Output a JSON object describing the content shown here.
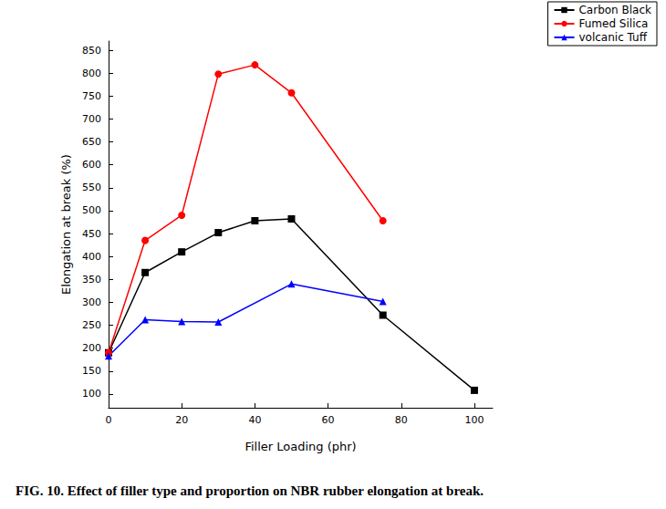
{
  "chart_data": {
    "type": "line",
    "title": "FIG. 10. Effect of filler type and proportion on NBR rubber elongation at break.",
    "x_label": "Filler Loading (phr)",
    "y_label": "Elongation at break (%)",
    "xlim": [
      0,
      105
    ],
    "xticks": [
      0,
      20,
      40,
      60,
      80,
      100
    ],
    "ylim": [
      70,
      870
    ],
    "yticks": [
      100,
      150,
      200,
      250,
      300,
      350,
      400,
      450,
      500,
      550,
      600,
      650,
      700,
      750,
      800,
      850
    ],
    "grid": false,
    "legend": "upper right",
    "series": [
      {
        "name": "Carbon Black",
        "color": "#000000",
        "marker": "square",
        "x": [
          0,
          10,
          20,
          30,
          40,
          50,
          75,
          100
        ],
        "values": [
          190,
          365,
          410,
          452,
          478,
          482,
          272,
          108
        ]
      },
      {
        "name": "Fumed Silica",
        "color": "#ff0000",
        "marker": "circle",
        "x": [
          0,
          10,
          20,
          30,
          40,
          50,
          75
        ],
        "values": [
          190,
          435,
          490,
          798,
          818,
          757,
          478
        ]
      },
      {
        "name": "volcanic Tuff",
        "color": "#0000ff",
        "marker": "triangle",
        "x": [
          0,
          10,
          20,
          30,
          50,
          75
        ],
        "values": [
          183,
          262,
          258,
          257,
          340,
          302
        ]
      }
    ]
  }
}
